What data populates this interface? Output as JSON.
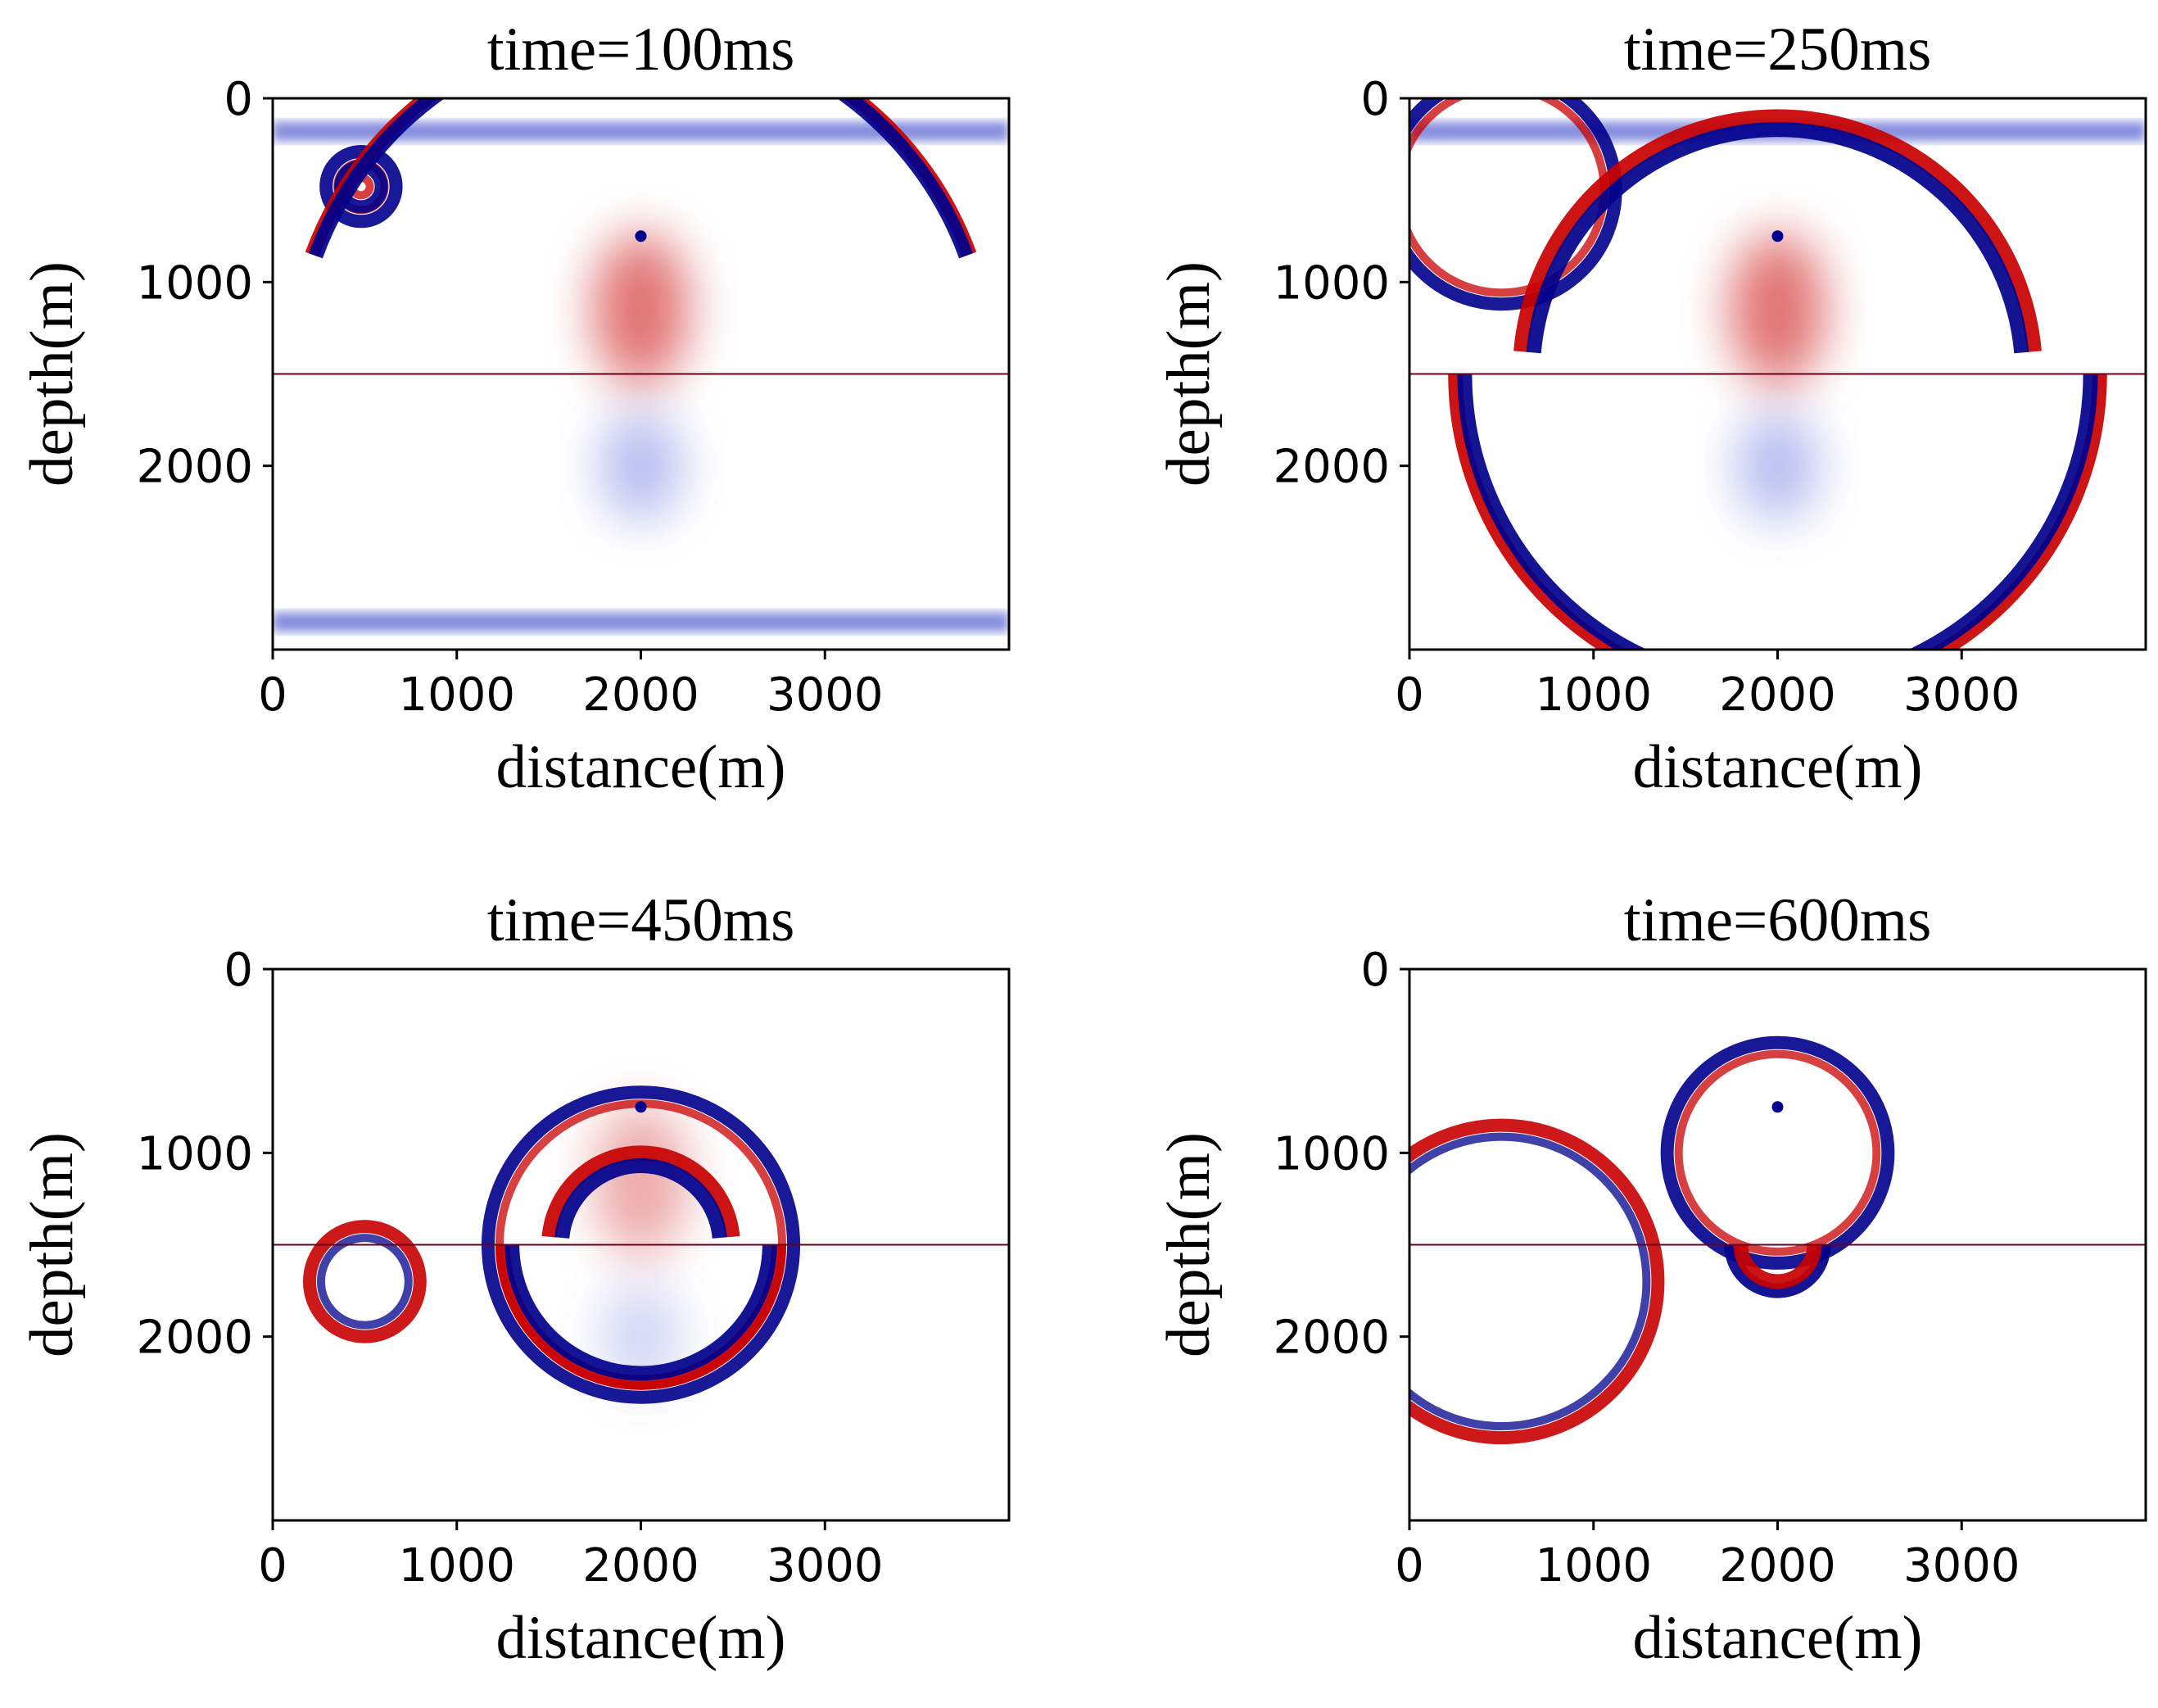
{
  "chart_data": [
    {
      "type": "heatmap",
      "title": "time=100ms",
      "xlabel": "distance(m)",
      "ylabel": "depth(m)",
      "xlim": [
        0,
        4000
      ],
      "ylim": [
        3000,
        0
      ],
      "xticks": [
        0,
        1000,
        2000,
        3000
      ],
      "yticks": [
        0,
        1000,
        2000
      ],
      "colormap": "seismic",
      "interface_depth": 1500,
      "source": {
        "x": 2000,
        "depth": 1000
      },
      "circles": [
        {
          "cx": 480,
          "cz": 480,
          "r": 190,
          "pol": -1
        },
        {
          "cx": 480,
          "cz": 480,
          "r": 110,
          "pol": -1
        }
      ],
      "arcs": [
        {
          "cx": 2000,
          "cz": 1500,
          "r": 1900,
          "t0": 200,
          "t1": 340,
          "pol": 1
        },
        {
          "cx": 2000,
          "cz": 1500,
          "r": 1880,
          "t0": 200,
          "t1": 340,
          "pol": -1
        }
      ],
      "bands": [
        {
          "z": 180,
          "pol": -1
        },
        {
          "z": 2850,
          "pol": -1
        }
      ]
    },
    {
      "type": "heatmap",
      "title": "time=250ms",
      "xlabel": "distance(m)",
      "ylabel": "depth(m)",
      "xlim": [
        0,
        4000
      ],
      "ylim": [
        3000,
        0
      ],
      "xticks": [
        0,
        1000,
        2000,
        3000
      ],
      "yticks": [
        0,
        1000,
        2000
      ],
      "colormap": "seismic",
      "interface_depth": 1500,
      "source": {
        "x": 2000,
        "depth": 1000
      },
      "circles": [
        {
          "cx": 500,
          "cz": 500,
          "r": 620,
          "pol": -1
        }
      ],
      "arcs": [
        {
          "cx": 2000,
          "cz": 1500,
          "r": 1750,
          "t0": 0,
          "t1": 180,
          "pol": 1
        },
        {
          "cx": 2000,
          "cz": 1500,
          "r": 1700,
          "t0": 0,
          "t1": 180,
          "pol": -1
        },
        {
          "cx": 2000,
          "cz": 1500,
          "r": 1400,
          "t0": 185,
          "t1": 355,
          "pol": 1
        },
        {
          "cx": 2000,
          "cz": 1500,
          "r": 1330,
          "t0": 185,
          "t1": 355,
          "pol": -1
        }
      ],
      "bands": [
        {
          "z": 180,
          "pol": -1
        }
      ]
    },
    {
      "type": "heatmap",
      "title": "time=450ms",
      "xlabel": "distance(m)",
      "ylabel": "depth(m)",
      "xlim": [
        0,
        4000
      ],
      "ylim": [
        3000,
        0
      ],
      "xticks": [
        0,
        1000,
        2000,
        3000
      ],
      "yticks": [
        0,
        1000,
        2000
      ],
      "colormap": "seismic",
      "interface_depth": 1500,
      "source": {
        "x": 2000,
        "depth": 1000
      },
      "circles": [
        {
          "cx": 500,
          "cz": 1700,
          "r": 300,
          "pol": 1
        },
        {
          "cx": 2000,
          "cz": 1500,
          "r": 830,
          "pol": -1
        }
      ],
      "arcs": [
        {
          "cx": 2000,
          "cz": 1500,
          "r": 750,
          "t0": 0,
          "t1": 180,
          "pol": 1
        },
        {
          "cx": 2000,
          "cz": 1500,
          "r": 700,
          "t0": 0,
          "t1": 180,
          "pol": -1
        },
        {
          "cx": 2000,
          "cz": 1500,
          "r": 500,
          "t0": 185,
          "t1": 355,
          "pol": 1
        },
        {
          "cx": 2000,
          "cz": 1500,
          "r": 430,
          "t0": 185,
          "t1": 355,
          "pol": -1
        }
      ],
      "bands": []
    },
    {
      "type": "heatmap",
      "title": "time=600ms",
      "xlabel": "distance(m)",
      "ylabel": "depth(m)",
      "xlim": [
        0,
        4000
      ],
      "ylim": [
        3000,
        0
      ],
      "xticks": [
        0,
        1000,
        2000,
        3000
      ],
      "yticks": [
        0,
        1000,
        2000
      ],
      "colormap": "seismic",
      "interface_depth": 1500,
      "source": {
        "x": 2000,
        "depth": 1000
      },
      "circles": [
        {
          "cx": 500,
          "cz": 1700,
          "r": 850,
          "pol": 1
        },
        {
          "cx": 2000,
          "cz": 1000,
          "r": 600,
          "pol": -1
        }
      ],
      "arcs": [
        {
          "cx": 2000,
          "cz": 1500,
          "r": 250,
          "t0": 0,
          "t1": 180,
          "pol": -1
        },
        {
          "cx": 2000,
          "cz": 1500,
          "r": 200,
          "t0": 0,
          "t1": 180,
          "pol": 1
        }
      ],
      "bands": []
    }
  ]
}
